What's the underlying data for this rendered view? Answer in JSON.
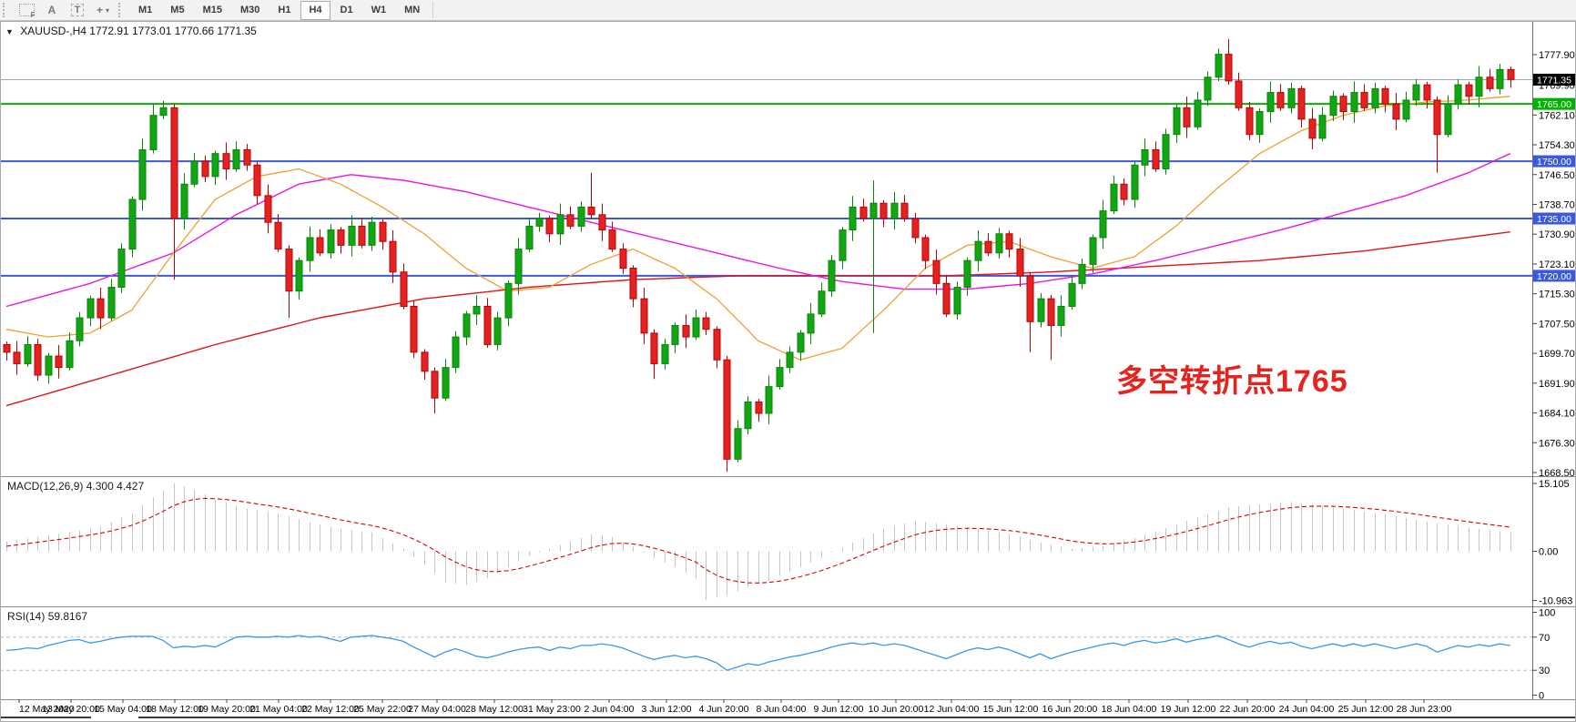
{
  "toolbar": {
    "tools": [
      {
        "label": "F",
        "name": "grid-f-tool"
      },
      {
        "label": "A",
        "name": "label-tool"
      },
      {
        "label": "T",
        "name": "text-tool"
      },
      {
        "label": "+",
        "name": "cursor-tool"
      }
    ],
    "timeframes": [
      {
        "label": "M1",
        "active": false
      },
      {
        "label": "M5",
        "active": false
      },
      {
        "label": "M15",
        "active": false
      },
      {
        "label": "M30",
        "active": false
      },
      {
        "label": "H1",
        "active": false
      },
      {
        "label": "H4",
        "active": true
      },
      {
        "label": "D1",
        "active": false
      },
      {
        "label": "W1",
        "active": false
      },
      {
        "label": "MN",
        "active": false
      }
    ]
  },
  "chart": {
    "dropdown_icon": "▼",
    "title": "XAUUSD-,H4",
    "ohlc": "1772.91 1773.01 1770.66 1771.35",
    "annotation": {
      "text": "多空转折点1765",
      "color": "#e8231d"
    },
    "current_price": {
      "value": 1771.35,
      "label": "1771.35",
      "line_color": "#9aa8b6",
      "tag_bg": "#000000"
    },
    "levels": [
      {
        "value": 1765,
        "label": "1765.00",
        "color": "#00b300"
      },
      {
        "value": 1750,
        "label": "1750.00",
        "color": "#3c59dd"
      },
      {
        "value": 1735,
        "label": "1735.00",
        "color": "#3c59dd"
      },
      {
        "value": 1720,
        "label": "1720.00",
        "color": "#3c59dd"
      }
    ],
    "y_ticks": [
      [
        "1777.90",
        1777.9
      ],
      [
        "1769.90",
        1769.9
      ],
      [
        "1762.10",
        1762.1
      ],
      [
        "1754.30",
        1754.3
      ],
      [
        "1746.50",
        1746.5
      ],
      [
        "1738.70",
        1738.7
      ],
      [
        "1730.90",
        1730.9
      ],
      [
        "1723.10",
        1723.1
      ],
      [
        "1715.30",
        1715.3
      ],
      [
        "1707.50",
        1707.5
      ],
      [
        "1699.70",
        1699.7
      ],
      [
        "1691.90",
        1691.9
      ],
      [
        "1684.10",
        1684.1
      ],
      [
        "1676.30",
        1676.3
      ],
      [
        "1668.50",
        1668.5
      ]
    ]
  },
  "indicators": {
    "macd": {
      "label": "MACD(12,26,9)",
      "values": "4.300 4.427",
      "ticks": [
        [
          "15.105",
          15.105
        ],
        [
          "0.00",
          0
        ],
        [
          "-10.963",
          -10.963
        ]
      ]
    },
    "rsi": {
      "label": "RSI(14)",
      "value": "59.8167",
      "ticks": [
        [
          "100",
          100
        ],
        [
          "70",
          70
        ],
        [
          "30",
          30
        ],
        [
          "0",
          0
        ]
      ],
      "levels": [
        70,
        30
      ]
    }
  },
  "colors": {
    "candle_up": "#12a612",
    "candle_up_stroke": "#0a840a",
    "candle_down": "#e32222",
    "candle_down_stroke": "#bf0000",
    "ma_red": "#e01414",
    "ma_magenta": "#e616e6",
    "ma_orange": "#f0a030",
    "macd_hist": "#c4c4c4",
    "macd_signal": "#dd0000",
    "rsi_line": "#3898e8",
    "bid_line": "#9aa8b6"
  },
  "chart_data": {
    "type": "candlestick+indicators",
    "symbol": "XAUUSD-",
    "timeframe": "H4",
    "price_range": [
      1667.55,
      1786.72
    ],
    "x_labels": [
      "12 May 2020",
      "13 May 20:00",
      "15 May 04:00",
      "18 May 12:00",
      "19 May 20:00",
      "21 May 04:00",
      "22 May 12:00",
      "25 May 22:00",
      "27 May 04:00",
      "28 May 12:00",
      "31 May 23:00",
      "2 Jun 04:00",
      "3 Jun 12:00",
      "4 Jun 20:00",
      "8 Jun 04:00",
      "9 Jun 12:00",
      "10 Jun 20:00",
      "12 Jun 04:00",
      "15 Jun 12:00",
      "16 Jun 20:00",
      "18 Jun 04:00",
      "19 Jun 12:00",
      "22 Jun 20:00",
      "24 Jun 04:00",
      "25 Jun 12:00",
      "28 Jun 23:00"
    ],
    "candles": {
      "count": 145,
      "first_open": 1702,
      "closes": [
        1700,
        1697,
        1702,
        1694,
        1699,
        1696,
        1703,
        1709,
        1714,
        1709,
        1717,
        1727,
        1740,
        1753,
        1762,
        1764,
        1735,
        1744,
        1750,
        1746,
        1752,
        1748,
        1753,
        1749,
        1741,
        1734,
        1727,
        1716,
        1724,
        1730,
        1726,
        1732,
        1728,
        1733,
        1728,
        1734,
        1729,
        1721,
        1712,
        1700,
        1695,
        1688,
        1696,
        1704,
        1710,
        1712,
        1702,
        1709,
        1718,
        1727,
        1733,
        1735,
        1731,
        1736,
        1733,
        1738,
        1736,
        1732,
        1727,
        1722,
        1714,
        1705,
        1697,
        1702,
        1707,
        1704,
        1709,
        1706,
        1698,
        1672,
        1680,
        1687,
        1684,
        1691,
        1696,
        1700,
        1705,
        1710,
        1716,
        1724,
        1732,
        1738,
        1735,
        1739,
        1735,
        1739,
        1735,
        1730,
        1724,
        1718,
        1710,
        1717,
        1724,
        1729,
        1726,
        1731,
        1727,
        1720,
        1708,
        1714,
        1707,
        1712,
        1718,
        1723,
        1730,
        1737,
        1744,
        1740,
        1749,
        1753,
        1748,
        1757,
        1764,
        1759,
        1766,
        1772,
        1778,
        1771,
        1764,
        1757,
        1763,
        1768,
        1764,
        1769,
        1761,
        1756,
        1762,
        1767,
        1763,
        1768,
        1764,
        1769,
        1765,
        1761,
        1766,
        1770,
        1766,
        1757,
        1765,
        1770,
        1767,
        1772,
        1769,
        1774,
        1771.4
      ],
      "wick_overrides": {
        "14": [
          3,
          1
        ],
        "15": [
          1.8,
          1
        ],
        "16": [
          1,
          16
        ],
        "27": [
          1,
          7
        ],
        "41": [
          1,
          4
        ],
        "56": [
          9,
          1
        ],
        "62": [
          1,
          4
        ],
        "69": [
          1,
          3.3
        ],
        "83": [
          6,
          30
        ],
        "98": [
          1,
          8
        ],
        "100": [
          1,
          9
        ],
        "116": [
          1.5,
          1
        ],
        "117": [
          4,
          1
        ],
        "137": [
          1,
          10
        ]
      }
    },
    "overlays": {
      "ma_red": [
        [
          0,
          1686
        ],
        [
          10,
          1694
        ],
        [
          20,
          1702
        ],
        [
          30,
          1709
        ],
        [
          40,
          1714
        ],
        [
          50,
          1717
        ],
        [
          60,
          1719
        ],
        [
          70,
          1720
        ],
        [
          80,
          1720
        ],
        [
          90,
          1720
        ],
        [
          100,
          1721
        ],
        [
          110,
          1722.5
        ],
        [
          120,
          1724
        ],
        [
          130,
          1726.5
        ],
        [
          137,
          1729
        ],
        [
          144,
          1731.5
        ]
      ],
      "ma_magenta": [
        [
          0,
          1712
        ],
        [
          8,
          1718
        ],
        [
          16,
          1726
        ],
        [
          22,
          1736
        ],
        [
          28,
          1744
        ],
        [
          33,
          1746.5
        ],
        [
          38,
          1745
        ],
        [
          44,
          1742
        ],
        [
          50,
          1738
        ],
        [
          56,
          1734
        ],
        [
          62,
          1730
        ],
        [
          68,
          1726
        ],
        [
          74,
          1722
        ],
        [
          80,
          1718.5
        ],
        [
          86,
          1716.5
        ],
        [
          92,
          1716.5
        ],
        [
          98,
          1718
        ],
        [
          104,
          1720.5
        ],
        [
          110,
          1724
        ],
        [
          116,
          1728
        ],
        [
          122,
          1732
        ],
        [
          128,
          1736.5
        ],
        [
          134,
          1741
        ],
        [
          140,
          1747
        ],
        [
          144,
          1752
        ]
      ],
      "ma_orange": [
        [
          0,
          1706
        ],
        [
          4,
          1704
        ],
        [
          8,
          1705
        ],
        [
          12,
          1711
        ],
        [
          16,
          1726
        ],
        [
          20,
          1740
        ],
        [
          24,
          1746
        ],
        [
          28,
          1748
        ],
        [
          32,
          1744
        ],
        [
          36,
          1738
        ],
        [
          40,
          1731
        ],
        [
          44,
          1722
        ],
        [
          48,
          1716
        ],
        [
          52,
          1717
        ],
        [
          56,
          1723
        ],
        [
          60,
          1727
        ],
        [
          64,
          1722
        ],
        [
          68,
          1714
        ],
        [
          72,
          1703
        ],
        [
          76,
          1698
        ],
        [
          80,
          1701
        ],
        [
          84,
          1711
        ],
        [
          88,
          1722
        ],
        [
          92,
          1728
        ],
        [
          96,
          1729
        ],
        [
          100,
          1725
        ],
        [
          104,
          1722
        ],
        [
          108,
          1725
        ],
        [
          112,
          1733
        ],
        [
          116,
          1743
        ],
        [
          120,
          1752
        ],
        [
          124,
          1758
        ],
        [
          128,
          1762
        ],
        [
          132,
          1764.5
        ],
        [
          136,
          1765.5
        ],
        [
          140,
          1766
        ],
        [
          144,
          1767
        ]
      ]
    },
    "macd_main_keypoints": [
      [
        0,
        2.2
      ],
      [
        3,
        3.2
      ],
      [
        6,
        4.2
      ],
      [
        9,
        5.5
      ],
      [
        12,
        8.5
      ],
      [
        14,
        12
      ],
      [
        16,
        15.1
      ],
      [
        18,
        13.8
      ],
      [
        20,
        11.5
      ],
      [
        23,
        9.5
      ],
      [
        26,
        8.5
      ],
      [
        29,
        6.5
      ],
      [
        32,
        5
      ],
      [
        35,
        4.2
      ],
      [
        38,
        0.5
      ],
      [
        40,
        -3
      ],
      [
        42,
        -7
      ],
      [
        44,
        -7.5
      ],
      [
        46,
        -6
      ],
      [
        48,
        -3.5
      ],
      [
        50,
        -1
      ],
      [
        52,
        0.5
      ],
      [
        54,
        2.2
      ],
      [
        56,
        3.8
      ],
      [
        58,
        3.2
      ],
      [
        60,
        1
      ],
      [
        62,
        -1.5
      ],
      [
        64,
        -3.5
      ],
      [
        66,
        -6
      ],
      [
        67,
        -10.9
      ],
      [
        69,
        -9.8
      ],
      [
        71,
        -8
      ],
      [
        73,
        -6.5
      ],
      [
        75,
        -4.5
      ],
      [
        78,
        -1.5
      ],
      [
        81,
        2
      ],
      [
        84,
        5
      ],
      [
        87,
        6.8
      ],
      [
        90,
        6
      ],
      [
        93,
        5
      ],
      [
        96,
        3.8
      ],
      [
        99,
        2
      ],
      [
        102,
        0.5
      ],
      [
        105,
        1.2
      ],
      [
        108,
        3
      ],
      [
        111,
        5.2
      ],
      [
        114,
        7.5
      ],
      [
        117,
        9.8
      ],
      [
        120,
        10.5
      ],
      [
        123,
        11
      ],
      [
        126,
        10.2
      ],
      [
        129,
        9.2
      ],
      [
        132,
        8.2
      ],
      [
        135,
        7
      ],
      [
        137,
        6.2
      ],
      [
        139,
        5.6
      ],
      [
        141,
        5
      ],
      [
        143,
        4.5
      ],
      [
        144,
        4.3
      ]
    ],
    "rsi_values": [
      54,
      55,
      57,
      56,
      60,
      63,
      66,
      67,
      63,
      65,
      68,
      70,
      71,
      71,
      71,
      66,
      57,
      59,
      58,
      60,
      58,
      64,
      70,
      71,
      70,
      70,
      71,
      70,
      72,
      70,
      71,
      68,
      65,
      70,
      71,
      72,
      70,
      68,
      65,
      58,
      52,
      46,
      52,
      56,
      52,
      47,
      45,
      48,
      52,
      55,
      57,
      58,
      54,
      58,
      56,
      60,
      60,
      62,
      60,
      57,
      52,
      47,
      43,
      46,
      48,
      45,
      47,
      44,
      39,
      30,
      34,
      38,
      36,
      40,
      43,
      46,
      48,
      51,
      54,
      58,
      61,
      63,
      61,
      63,
      60,
      62,
      60,
      56,
      52,
      48,
      44,
      49,
      54,
      57,
      55,
      58,
      55,
      50,
      45,
      50,
      44,
      48,
      52,
      55,
      58,
      61,
      63,
      60,
      64,
      66,
      63,
      65,
      68,
      64,
      67,
      69,
      72,
      67,
      62,
      58,
      62,
      65,
      62,
      64,
      59,
      56,
      59,
      62,
      59,
      62,
      59,
      62,
      59,
      56,
      59,
      62,
      59,
      52,
      56,
      60,
      58,
      61,
      59,
      62,
      59.8
    ]
  }
}
